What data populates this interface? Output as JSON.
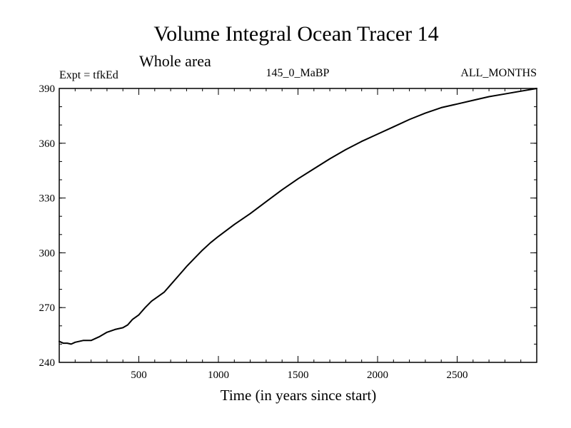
{
  "chart_data": {
    "type": "line",
    "title": "Volume Integral Ocean Tracer 14",
    "subtitle": "Whole area",
    "experiment_label": "Expt = tfkEd",
    "center_label": "145_0_MaBP",
    "months_label": "ALL_MONTHS",
    "xlabel": "Time (in years since start)",
    "ylabel": "",
    "xlim": [
      0,
      3000
    ],
    "ylim": [
      240,
      390
    ],
    "x_ticks": [
      500,
      1000,
      1500,
      2000,
      2500
    ],
    "x_tick_labels": [
      "500",
      "1000",
      "1500",
      "2000",
      "2500"
    ],
    "x_minor_step": 100,
    "y_ticks": [
      240,
      270,
      300,
      330,
      360,
      390
    ],
    "y_tick_labels": [
      "240",
      "270",
      "300",
      "330",
      "360",
      "390"
    ],
    "y_minor_step": 10,
    "grid": false,
    "line_color": "#000000",
    "series": [
      {
        "x": [
          0,
          25,
          50,
          75,
          100,
          150,
          200,
          250,
          300,
          350,
          400,
          430,
          460,
          500,
          540,
          580,
          620,
          660,
          700,
          750,
          800,
          850,
          900,
          950,
          1000,
          1100,
          1200,
          1300,
          1400,
          1500,
          1600,
          1700,
          1800,
          1900,
          2000,
          2100,
          2200,
          2300,
          2400,
          2500,
          2600,
          2700,
          2800,
          2900,
          3000
        ],
        "y": [
          251.5,
          250.5,
          250.5,
          250.0,
          251.0,
          252.0,
          252.0,
          254.0,
          256.5,
          258.0,
          259.0,
          260.5,
          263.5,
          266.0,
          270.0,
          273.5,
          276.0,
          278.5,
          282.5,
          287.5,
          292.5,
          297.0,
          301.5,
          305.5,
          309.0,
          315.5,
          321.5,
          328.0,
          334.5,
          340.5,
          346.0,
          351.5,
          356.5,
          361.0,
          365.0,
          369.0,
          373.0,
          376.5,
          379.5,
          381.5,
          383.5,
          385.5,
          387.0,
          388.5,
          390.0
        ]
      }
    ]
  }
}
